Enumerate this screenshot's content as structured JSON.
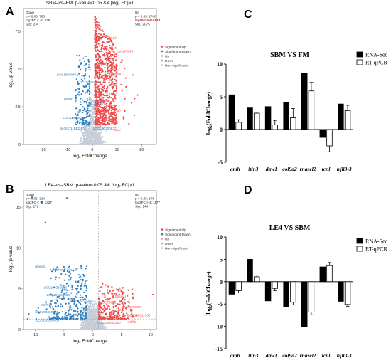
{
  "colors": {
    "up": "#f04a4a",
    "down": "#2f7fc0",
    "nonsig": "#c6cdd8",
    "rna": "#000000",
    "qpcr": "#ffffff"
  },
  "chart_data": [
    {
      "panel": "A",
      "type": "scatter",
      "title": "SBM–vs–FM: p-value<0.05 && |log₂ FC|>1",
      "xlabel": "log₂ FoldChange",
      "ylabel": "–log₁₀ p-value",
      "xlim": [
        -28,
        26
      ],
      "ylim": [
        0,
        9
      ],
      "xticks": [
        "-20",
        "-10",
        "0",
        "10",
        "20"
      ],
      "xtick_values": [
        -20,
        -10,
        0,
        10,
        20
      ],
      "yticks": [
        "0",
        "2.5",
        "5",
        "7.5"
      ],
      "ytick_values": [
        0,
        2.5,
        5,
        7.5
      ],
      "threshold_x": [
        -1,
        1
      ],
      "threshold_y": 1.3,
      "down_box": [
        "Down",
        "p < 0.05: 763",
        "log2FC < -1: 236",
        "Sig.: 234"
      ],
      "up_box": [
        "Up",
        "p < 0.05: 2748",
        "log2FC > 1: 4614",
        "Sig.: 2075"
      ],
      "legend": [
        "Significant Up",
        "Significant Down",
        "Up",
        "Down",
        "Non-significant"
      ],
      "labels_down": [
        {
          "text": "LOC100004944",
          "x": -14.5,
          "y": 4.55
        },
        {
          "text": "LOC101883038",
          "x": -6.0,
          "y": 4.05
        },
        {
          "text": "gimd6",
          "x": -11.5,
          "y": 2.95
        },
        {
          "text": "LOC100007",
          "x": -2.5,
          "y": 2.65
        },
        {
          "text": "LOC110438745",
          "x": -12.0,
          "y": 1.7
        },
        {
          "text": "si:ch211-14d26.2",
          "x": -13.0,
          "y": 1.0
        },
        {
          "text": "LOC100200637",
          "x": 0.3,
          "y": 1.0
        }
      ],
      "labels_up": [
        {
          "text": "tbsg2",
          "x": 6.5,
          "y": 7.0
        },
        {
          "text": "cgc170543",
          "x": 10.0,
          "y": 6.1
        },
        {
          "text": "tbmsmk",
          "x": 7.0,
          "y": 4.6
        },
        {
          "text": "mrs4",
          "x": 7.0,
          "y": 3.9
        },
        {
          "text": "btr1",
          "x": 7.0,
          "y": 3.3
        },
        {
          "text": "aig3",
          "x": 9.0,
          "y": 2.2
        },
        {
          "text": "abca",
          "x": 7.5,
          "y": 1.4
        },
        {
          "text": "abci",
          "x": 9.0,
          "y": 0.9
        },
        {
          "text": "LOC110432081",
          "x": 18.0,
          "y": 8.2
        }
      ]
    },
    {
      "panel": "B",
      "type": "scatter",
      "title": "LE4–vs–SBM: p-value<0.05 && |log₂ FC|>1",
      "xlabel": "log₂ FoldChange",
      "ylabel": "–log₁₀ p-value",
      "xlim": [
        -12,
        11
      ],
      "ylim": [
        0,
        17
      ],
      "xticks": [
        "-10",
        "-5",
        "0",
        "5",
        "10"
      ],
      "xtick_values": [
        -10,
        -5,
        0,
        5,
        10
      ],
      "yticks": [
        "0",
        "5",
        "10",
        "15"
      ],
      "ytick_values": [
        0,
        5,
        10,
        15
      ],
      "threshold_x": [
        -1,
        1
      ],
      "threshold_y": 1.3,
      "down_box": [
        "Down",
        "p < 0.05: 314",
        "log2FC < -1: 1327",
        "Sig.: 272"
      ],
      "up_box": [
        "Up",
        "p < 0.05: 176",
        "log2FC > 1: 1177",
        "Sig.: 144"
      ],
      "legend": [
        "Significant Up",
        "Significant Down",
        "Up",
        "Down",
        "Non-significant"
      ],
      "labels_down": [
        {
          "text": "rnasel2",
          "x": -10.0,
          "y": 7.6
        },
        {
          "text": "si:dkeyp-20e4.6",
          "x": -6.8,
          "y": 7.2
        },
        {
          "text": "LOC100331508",
          "x": -8.5,
          "y": 5.0
        },
        {
          "text": "LOC101885450",
          "x": -8.0,
          "y": 4.1
        },
        {
          "text": "sh:ch211-173b9.3",
          "x": -4.0,
          "y": 3.4
        },
        {
          "text": "wu:fc13",
          "x": -9.0,
          "y": 2.9
        },
        {
          "text": "LOC100330661",
          "x": -10.0,
          "y": 2.0
        },
        {
          "text": "LOC100006180",
          "x": -9.8,
          "y": 1.0
        }
      ],
      "labels_up": [
        {
          "text": "c7b",
          "x": 4.0,
          "y": 4.9
        },
        {
          "text": "PR0911",
          "x": 3.8,
          "y": 3.9
        },
        {
          "text": "LOC796961",
          "x": 1.3,
          "y": 3.2
        },
        {
          "text": "bfd",
          "x": 4.8,
          "y": 3.2
        },
        {
          "text": "LOC796871",
          "x": 5.5,
          "y": 2.6
        },
        {
          "text": "LOC100011765",
          "x": 6.0,
          "y": 1.6
        },
        {
          "text": "LOC108182",
          "x": 2.5,
          "y": 1.2
        },
        {
          "text": "LOC101882050",
          "x": 0.8,
          "y": 0.7
        },
        {
          "text": "wdfhb",
          "x": 6.0,
          "y": 0.8
        }
      ]
    },
    {
      "panel": "C",
      "type": "bar",
      "title": "SBM VS FM",
      "ylabel_main": "log",
      "ylabel_sub": "2",
      "ylabel_rest": "(FoldChange)",
      "categories": [
        "amh",
        "itln3",
        "daw1",
        "col9a2",
        "rnasel2",
        "tcnl",
        "nfil3-3"
      ],
      "series": [
        {
          "name": "RNA-Seq",
          "values": [
            5.3,
            3.3,
            3.5,
            4.1,
            8.6,
            -1.2,
            3.9
          ],
          "err": [
            0,
            0,
            0,
            0,
            0,
            0,
            0
          ]
        },
        {
          "name": "RT-qPCR",
          "values": [
            1.1,
            2.5,
            0.7,
            1.8,
            5.9,
            -2.5,
            2.9
          ],
          "err": [
            0.4,
            0.15,
            0.7,
            1.4,
            1.3,
            0.9,
            0.8
          ]
        }
      ],
      "ylim": [
        -5,
        10
      ],
      "yticks": [
        -5,
        0,
        5,
        10
      ]
    },
    {
      "panel": "D",
      "type": "bar",
      "title": "LE4 VS SBM",
      "ylabel_main": "log",
      "ylabel_sub": "2",
      "ylabel_rest": "(FoldChange)",
      "categories": [
        "amh",
        "itln3",
        "daw1",
        "col9a2",
        "rnasel2",
        "tcnl",
        "nfil3-3"
      ],
      "series": [
        {
          "name": "RNA-Seq",
          "values": [
            -2.8,
            5.0,
            -4.3,
            -5.6,
            -10.0,
            3.3,
            -4.4
          ],
          "err": [
            0,
            0,
            0,
            0,
            0,
            0,
            0
          ]
        },
        {
          "name": "RT-qPCR",
          "values": [
            -2.0,
            1.1,
            -1.5,
            -4.6,
            -6.8,
            3.6,
            -5.1
          ],
          "err": [
            0.5,
            0.4,
            0.5,
            0.6,
            0.6,
            0.7,
            0.4
          ]
        }
      ],
      "ylim": [
        -15,
        10
      ],
      "yticks": [
        -15,
        -10,
        -5,
        0,
        5,
        10
      ]
    }
  ]
}
